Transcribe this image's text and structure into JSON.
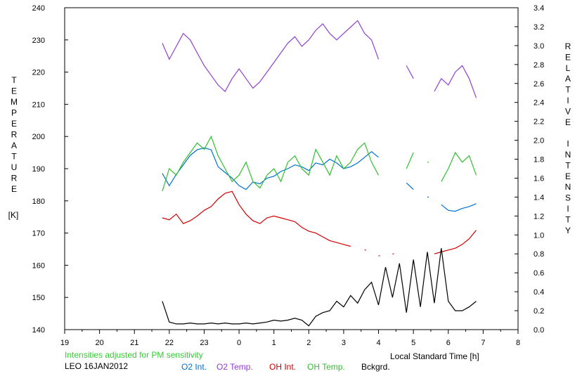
{
  "chart_data": {
    "type": "line",
    "xlabel": "Local Standard Time [h]",
    "ylabel": "TEMPERATURE",
    "ylabel_unit": "[K]",
    "y2label": "RELATIVE INTENSITY",
    "xlim": [
      19,
      32
    ],
    "ylim": [
      140,
      240
    ],
    "y2lim": [
      0.0,
      3.4
    ],
    "xticks": [
      19,
      20,
      21,
      22,
      23,
      24,
      25,
      26,
      27,
      28,
      29,
      30,
      31,
      32
    ],
    "xtick_labels": [
      "19",
      "20",
      "21",
      "22",
      "23",
      "0",
      "1",
      "2",
      "3",
      "4",
      "5",
      "6",
      "7",
      "8"
    ],
    "yticks": [
      140,
      150,
      160,
      170,
      180,
      190,
      200,
      210,
      220,
      230,
      240
    ],
    "ytick_labels": [
      "140",
      "150",
      "160",
      "170",
      "180",
      "190",
      "200",
      "210",
      "220",
      "230",
      "240"
    ],
    "y2ticks": [
      0,
      0.2,
      0.4,
      0.6,
      0.8,
      1.0,
      1.2,
      1.4,
      1.6,
      1.8,
      2.0,
      2.2,
      2.4,
      2.6,
      2.8,
      3.0,
      3.2,
      3.4
    ],
    "y2tick_labels": [
      "0.0",
      "0.2",
      "0.4",
      "0.6",
      "0.8",
      "1.0",
      "1.2",
      "1.4",
      "1.6",
      "1.8",
      "2.0",
      "2.2",
      "2.4",
      "2.6",
      "2.8",
      "3.0",
      "3.2",
      "3.4"
    ],
    "grid": false,
    "note": "Intensities adjusted for PM sensitivity",
    "station": "LEO 16JAN2012",
    "series": [
      {
        "name": "O2 Int.",
        "axis": "right",
        "color": "#0070d0",
        "x": [
          21.8,
          22.0,
          22.2,
          22.4,
          22.6,
          22.8,
          23.0,
          23.2,
          23.4,
          23.6,
          23.8,
          24.0,
          24.2,
          24.4,
          24.6,
          24.8,
          25.0,
          25.2,
          25.4,
          25.6,
          25.8,
          26.0,
          26.2,
          26.4,
          26.6,
          26.8,
          27.0,
          27.2,
          27.4,
          27.6,
          27.8,
          28.0,
          28.2,
          28.4,
          28.6,
          28.8,
          29.0,
          29.2,
          29.4,
          29.6,
          29.8,
          30.0,
          30.2,
          30.4,
          30.6,
          30.8
        ],
        "values": [
          1.65,
          1.52,
          1.64,
          1.74,
          1.84,
          1.9,
          1.92,
          1.9,
          1.72,
          1.66,
          1.6,
          1.52,
          1.48,
          1.56,
          1.54,
          1.6,
          1.62,
          1.67,
          1.7,
          1.74,
          1.72,
          1.68,
          1.76,
          1.74,
          1.8,
          1.76,
          1.7,
          1.72,
          1.76,
          1.82,
          1.88,
          1.82,
          null,
          null,
          null,
          1.55,
          1.48,
          null,
          1.4,
          null,
          1.32,
          1.26,
          1.25,
          1.28,
          1.3,
          1.33
        ]
      },
      {
        "name": "O2 Temp.",
        "axis": "left",
        "color": "#9040d0",
        "x": [
          21.8,
          22.0,
          22.2,
          22.4,
          22.6,
          22.8,
          23.0,
          23.2,
          23.4,
          23.6,
          23.8,
          24.0,
          24.2,
          24.4,
          24.6,
          24.8,
          25.0,
          25.2,
          25.4,
          25.6,
          25.8,
          26.0,
          26.2,
          26.4,
          26.6,
          26.8,
          27.0,
          27.2,
          27.4,
          27.6,
          27.8,
          28.0,
          28.2,
          28.4,
          28.6,
          28.8,
          29.0,
          29.2,
          29.4,
          29.6,
          29.8,
          30.0,
          30.2,
          30.4,
          30.6,
          30.8
        ],
        "values": [
          229,
          224,
          228,
          232,
          230,
          226,
          222,
          219,
          216,
          214,
          218,
          221,
          218,
          215,
          217,
          220,
          223,
          226,
          229,
          231,
          228,
          230,
          233,
          235,
          232,
          230,
          232,
          234,
          236,
          232,
          230,
          224,
          null,
          null,
          null,
          222,
          218,
          null,
          null,
          214,
          218,
          216,
          220,
          222,
          218,
          212
        ]
      },
      {
        "name": "OH Int.",
        "axis": "right",
        "color": "#d00000",
        "x": [
          21.8,
          22.0,
          22.2,
          22.4,
          22.6,
          22.8,
          23.0,
          23.2,
          23.4,
          23.6,
          23.8,
          24.0,
          24.2,
          24.4,
          24.6,
          24.8,
          25.0,
          25.2,
          25.4,
          25.6,
          25.8,
          26.0,
          26.2,
          26.4,
          26.6,
          26.8,
          27.0,
          27.2,
          27.4,
          27.6,
          27.8,
          28.0,
          28.2,
          28.4,
          28.6,
          28.8,
          29.0,
          29.2,
          29.4,
          29.6,
          29.8,
          30.0,
          30.2,
          30.4,
          30.6,
          30.8
        ],
        "values": [
          1.18,
          1.16,
          1.22,
          1.12,
          1.15,
          1.2,
          1.26,
          1.3,
          1.38,
          1.44,
          1.46,
          1.32,
          1.22,
          1.15,
          1.12,
          1.18,
          1.2,
          1.18,
          1.16,
          1.14,
          1.08,
          1.04,
          1.02,
          0.98,
          0.94,
          0.92,
          0.9,
          0.88,
          null,
          0.84,
          null,
          0.78,
          null,
          0.8,
          null,
          null,
          null,
          null,
          null,
          0.8,
          0.82,
          0.84,
          0.86,
          0.9,
          0.96,
          1.05
        ]
      },
      {
        "name": "OH Temp.",
        "axis": "left",
        "color": "#30c030",
        "x": [
          21.8,
          22.0,
          22.2,
          22.4,
          22.6,
          22.8,
          23.0,
          23.2,
          23.4,
          23.6,
          23.8,
          24.0,
          24.2,
          24.4,
          24.6,
          24.8,
          25.0,
          25.2,
          25.4,
          25.6,
          25.8,
          26.0,
          26.2,
          26.4,
          26.6,
          26.8,
          27.0,
          27.2,
          27.4,
          27.6,
          27.8,
          28.0,
          28.2,
          28.4,
          28.6,
          28.8,
          29.0,
          29.2,
          29.4,
          29.6,
          29.8,
          30.0,
          30.2,
          30.4,
          30.6,
          30.8
        ],
        "values": [
          183,
          190,
          188,
          192,
          195,
          198,
          196,
          200,
          194,
          190,
          186,
          188,
          192,
          186,
          184,
          188,
          190,
          186,
          192,
          194,
          190,
          188,
          196,
          192,
          188,
          194,
          190,
          192,
          196,
          198,
          192,
          188,
          null,
          null,
          null,
          190,
          195,
          null,
          192,
          null,
          186,
          190,
          195,
          192,
          194,
          188
        ]
      },
      {
        "name": "Bckgrd.",
        "axis": "right",
        "color": "#000000",
        "x": [
          21.8,
          22.0,
          22.2,
          22.4,
          22.6,
          22.8,
          23.0,
          23.2,
          23.4,
          23.6,
          23.8,
          24.0,
          24.2,
          24.4,
          24.6,
          24.8,
          25.0,
          25.2,
          25.4,
          25.6,
          25.8,
          26.0,
          26.2,
          26.4,
          26.6,
          26.8,
          27.0,
          27.2,
          27.4,
          27.6,
          27.8,
          28.0,
          28.2,
          28.4,
          28.6,
          28.8,
          29.0,
          29.2,
          29.4,
          29.6,
          29.8,
          30.0,
          30.2,
          30.4,
          30.6,
          30.8
        ],
        "values": [
          0.3,
          0.08,
          0.06,
          0.06,
          0.07,
          0.06,
          0.06,
          0.07,
          0.06,
          0.07,
          0.06,
          0.06,
          0.07,
          0.06,
          0.07,
          0.08,
          0.1,
          0.09,
          0.1,
          0.12,
          0.1,
          0.04,
          0.14,
          0.18,
          0.2,
          0.3,
          0.24,
          0.36,
          0.28,
          0.42,
          0.5,
          0.26,
          0.66,
          0.34,
          0.7,
          0.18,
          0.74,
          0.24,
          0.82,
          0.28,
          0.86,
          0.3,
          0.2,
          0.2,
          0.24,
          0.3
        ]
      }
    ]
  }
}
